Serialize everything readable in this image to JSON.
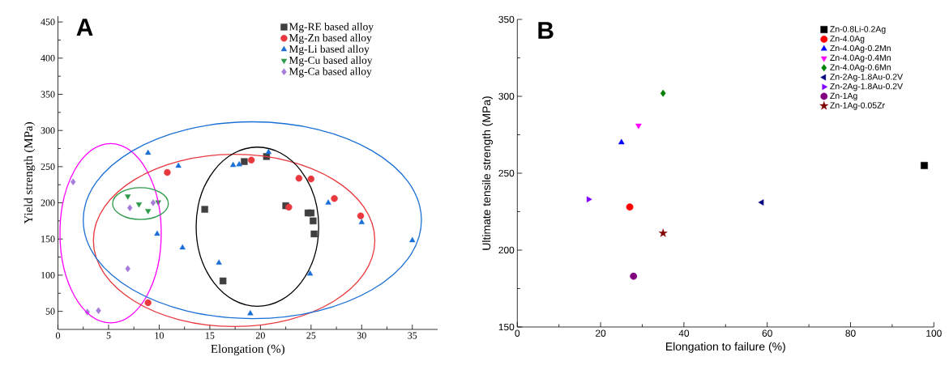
{
  "chart_data": [
    {
      "type": "scatter",
      "title": "A",
      "xlabel": "Elongation (%)",
      "ylabel": "Yield strength (MPa)",
      "xlim": [
        0,
        37.5
      ],
      "ylim": [
        25,
        458
      ],
      "xticks": [
        0,
        5,
        10,
        15,
        20,
        25,
        30,
        35
      ],
      "yticks": [
        50,
        100,
        150,
        200,
        250,
        300,
        350,
        400,
        450
      ],
      "legend": "top right",
      "series": [
        {
          "name": "Mg-RE based alloy",
          "color": "#404040",
          "marker": "square",
          "x": [
            14.5,
            16.3,
            18.4,
            20.6,
            22.5,
            24.7,
            25.0,
            25.2,
            25.3
          ],
          "values": [
            191,
            92,
            257,
            264,
            196,
            186,
            186,
            175,
            157
          ]
        },
        {
          "name": "Mg-Zn based alloy",
          "color": "#e8383d",
          "marker": "circle",
          "x": [
            10.8,
            8.9,
            19.1,
            23.8,
            25.0,
            22.8,
            27.3,
            29.9
          ],
          "values": [
            242,
            62,
            259,
            234,
            233,
            194,
            206,
            182
          ]
        },
        {
          "name": "Mg-Li based alloy",
          "color": "#1a6fd6",
          "marker": "triangle",
          "x": [
            8.9,
            11.9,
            9.8,
            12.3,
            15.9,
            19.0,
            17.3,
            17.9,
            20.8,
            24.9,
            26.7,
            30.0,
            35.0
          ],
          "values": [
            269,
            251,
            157,
            138,
            117,
            47,
            252,
            253,
            270,
            102,
            200,
            173,
            148
          ]
        },
        {
          "name": "Mg-Cu based alloy",
          "color": "#2e9a4b",
          "marker": "triangle-down",
          "x": [
            6.9,
            8.0,
            8.9,
            9.9
          ],
          "values": [
            209,
            198,
            189,
            201
          ]
        },
        {
          "name": "Mg-Ca based alloy",
          "color": "#a77bd9",
          "marker": "diamond",
          "x": [
            1.5,
            7.1,
            9.4,
            6.9,
            2.9,
            4.0
          ],
          "values": [
            229,
            193,
            200,
            109,
            49,
            51
          ]
        }
      ]
    },
    {
      "type": "scatter",
      "title": "B",
      "xlabel": "Elongation to failure (%)",
      "ylabel": "Ultimate tensile strength (MPa)",
      "xlim": [
        0,
        100
      ],
      "ylim": [
        150,
        350
      ],
      "xticks": [
        0,
        20,
        40,
        60,
        80,
        100
      ],
      "yticks": [
        150,
        200,
        250,
        300,
        350
      ],
      "legend": "top right",
      "series": [
        {
          "name": "Zn-0.8Li-0.2Ag",
          "color": "#000000",
          "marker": "square",
          "x": [
            97.7
          ],
          "values": [
            255
          ]
        },
        {
          "name": "Zn-4.0Ag",
          "color": "#ff0000",
          "marker": "circle",
          "x": [
            27.0
          ],
          "values": [
            228
          ]
        },
        {
          "name": "Zn-4.0Ag-0.2Mn",
          "color": "#0000ff",
          "marker": "triangle",
          "x": [
            25.0
          ],
          "values": [
            270
          ]
        },
        {
          "name": "Zn-4.0Ag-0.4Mn",
          "color": "#ff00ff",
          "marker": "triangle-down",
          "x": [
            29.1
          ],
          "values": [
            281
          ]
        },
        {
          "name": "Zn-4.0Ag-0.6Mn",
          "color": "#008000",
          "marker": "diamond",
          "x": [
            35.0
          ],
          "values": [
            302
          ]
        },
        {
          "name": "Zn-2Ag-1.8Au-0.2V",
          "color": "#000080",
          "marker": "triangle-left",
          "x": [
            58.7
          ],
          "values": [
            231
          ]
        },
        {
          "name": "Zn-2Ag-1.8Au-0.2V",
          "color": "#8000ff",
          "marker": "triangle-right",
          "x": [
            17.1
          ],
          "values": [
            233
          ]
        },
        {
          "name": "Zn-1Ag",
          "color": "#800080",
          "marker": "circle",
          "x": [
            27.9
          ],
          "values": [
            183
          ]
        },
        {
          "name": "Zn-1Ag-0.05Zr",
          "color": "#800000",
          "marker": "star",
          "x": [
            35.0
          ],
          "values": [
            211
          ]
        }
      ]
    }
  ]
}
